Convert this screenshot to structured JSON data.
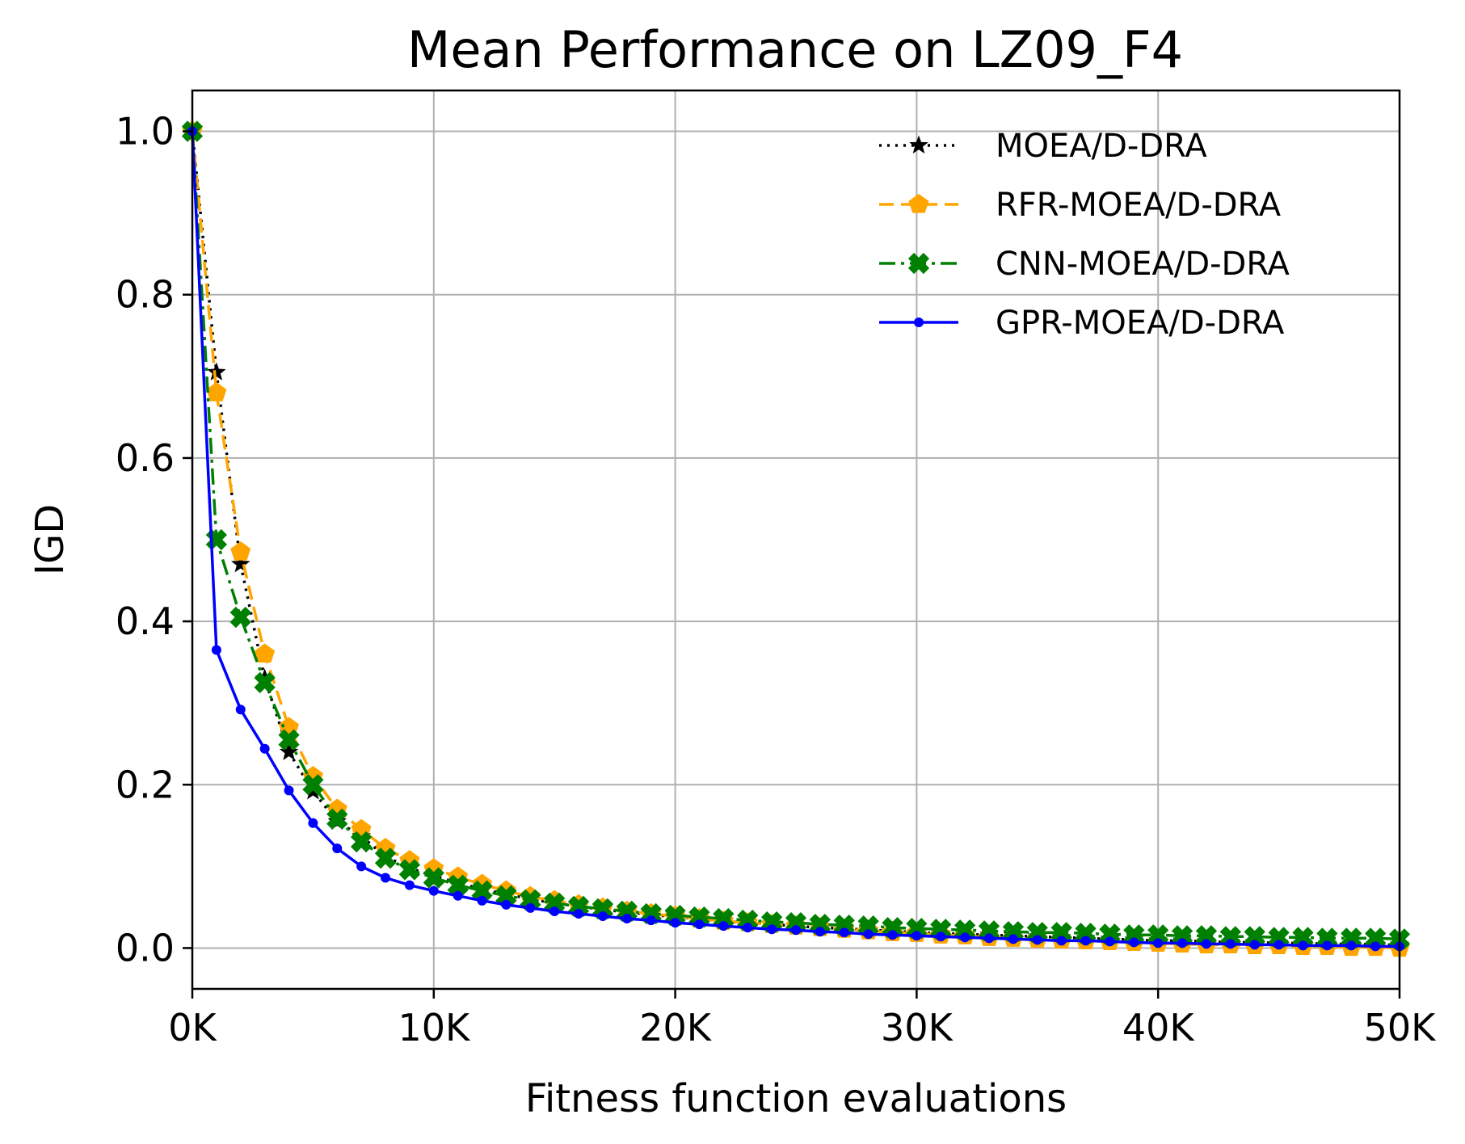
{
  "chart_data": {
    "type": "line",
    "title": "Mean Performance on LZ09_F4",
    "xlabel": "Fitness function evaluations",
    "ylabel": "IGD",
    "xlim": [
      0,
      50000
    ],
    "ylim": [
      -0.05,
      1.05
    ],
    "xticks": [
      {
        "value": 0,
        "label": "0K"
      },
      {
        "value": 10000,
        "label": "10K"
      },
      {
        "value": 20000,
        "label": "20K"
      },
      {
        "value": 30000,
        "label": "30K"
      },
      {
        "value": 40000,
        "label": "40K"
      },
      {
        "value": 50000,
        "label": "50K"
      }
    ],
    "yticks": [
      {
        "value": 0.0,
        "label": "0.0"
      },
      {
        "value": 0.2,
        "label": "0.2"
      },
      {
        "value": 0.4,
        "label": "0.4"
      },
      {
        "value": 0.6,
        "label": "0.6"
      },
      {
        "value": 0.8,
        "label": "0.8"
      },
      {
        "value": 1.0,
        "label": "1.0"
      }
    ],
    "grid": true,
    "legend_position": "top-right",
    "x": [
      0,
      1000,
      2000,
      3000,
      4000,
      5000,
      6000,
      7000,
      8000,
      9000,
      10000,
      11000,
      12000,
      13000,
      14000,
      15000,
      16000,
      17000,
      18000,
      19000,
      20000,
      21000,
      22000,
      23000,
      24000,
      25000,
      26000,
      27000,
      28000,
      29000,
      30000,
      31000,
      32000,
      33000,
      34000,
      35000,
      36000,
      37000,
      38000,
      39000,
      40000,
      41000,
      42000,
      43000,
      44000,
      45000,
      46000,
      47000,
      48000,
      49000,
      50000
    ],
    "series": [
      {
        "name": "MOEA/D-DRA",
        "color": "#000000",
        "linestyle": "dotted",
        "marker": "star",
        "values": [
          1.0,
          0.705,
          0.47,
          0.33,
          0.24,
          0.192,
          0.155,
          0.137,
          0.112,
          0.098,
          0.088,
          0.08,
          0.072,
          0.066,
          0.06,
          0.055,
          0.051,
          0.047,
          0.044,
          0.041,
          0.038,
          0.036,
          0.033,
          0.031,
          0.029,
          0.027,
          0.025,
          0.024,
          0.022,
          0.021,
          0.019,
          0.018,
          0.017,
          0.016,
          0.015,
          0.014,
          0.013,
          0.012,
          0.011,
          0.01,
          0.009,
          0.009,
          0.008,
          0.007,
          0.007,
          0.006,
          0.006,
          0.005,
          0.005,
          0.004,
          0.004
        ]
      },
      {
        "name": "RFR-MOEA/D-DRA",
        "color": "#ffa500",
        "linestyle": "dashed",
        "marker": "pentagon",
        "values": [
          1.0,
          0.68,
          0.485,
          0.36,
          0.27,
          0.21,
          0.17,
          0.145,
          0.122,
          0.107,
          0.097,
          0.087,
          0.078,
          0.07,
          0.063,
          0.058,
          0.053,
          0.049,
          0.045,
          0.042,
          0.039,
          0.036,
          0.033,
          0.031,
          0.029,
          0.027,
          0.025,
          0.023,
          0.021,
          0.019,
          0.018,
          0.016,
          0.015,
          0.013,
          0.012,
          0.011,
          0.01,
          0.009,
          0.008,
          0.007,
          0.006,
          0.005,
          0.004,
          0.004,
          0.003,
          0.003,
          0.002,
          0.002,
          0.001,
          0.001,
          0.0
        ]
      },
      {
        "name": "CNN-MOEA/D-DRA",
        "color": "#008000",
        "linestyle": "dashdot",
        "marker": "x-filled",
        "values": [
          1.0,
          0.5,
          0.405,
          0.325,
          0.255,
          0.2,
          0.158,
          0.13,
          0.11,
          0.096,
          0.086,
          0.077,
          0.07,
          0.064,
          0.059,
          0.055,
          0.051,
          0.048,
          0.045,
          0.042,
          0.04,
          0.038,
          0.036,
          0.034,
          0.032,
          0.031,
          0.029,
          0.028,
          0.027,
          0.025,
          0.024,
          0.023,
          0.022,
          0.021,
          0.02,
          0.019,
          0.019,
          0.018,
          0.017,
          0.016,
          0.016,
          0.015,
          0.015,
          0.014,
          0.014,
          0.013,
          0.013,
          0.012,
          0.012,
          0.012,
          0.011
        ]
      },
      {
        "name": "GPR-MOEA/D-DRA",
        "color": "#0000ff",
        "linestyle": "solid",
        "marker": "dot",
        "values": [
          1.0,
          0.365,
          0.292,
          0.244,
          0.193,
          0.153,
          0.122,
          0.1,
          0.086,
          0.077,
          0.07,
          0.064,
          0.058,
          0.053,
          0.049,
          0.045,
          0.042,
          0.039,
          0.036,
          0.034,
          0.031,
          0.029,
          0.027,
          0.025,
          0.023,
          0.022,
          0.02,
          0.019,
          0.017,
          0.016,
          0.015,
          0.014,
          0.013,
          0.012,
          0.011,
          0.01,
          0.009,
          0.009,
          0.008,
          0.007,
          0.006,
          0.006,
          0.005,
          0.005,
          0.004,
          0.004,
          0.003,
          0.003,
          0.003,
          0.002,
          0.002
        ]
      }
    ]
  }
}
